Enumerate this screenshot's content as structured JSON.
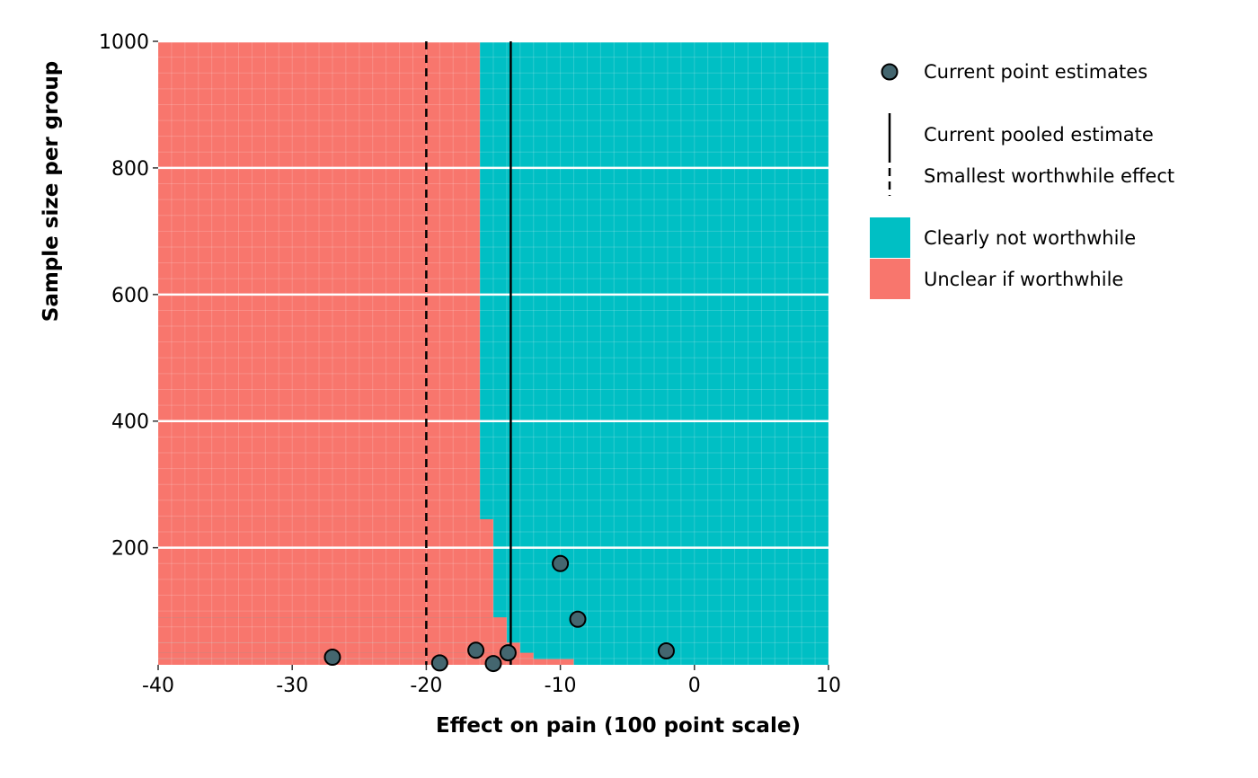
{
  "colors": {
    "clearly_not_worthwhile": "#00BFC4",
    "unclear_if_worthwhile": "#F8766D",
    "point_fill": "#44666f",
    "point_stroke": "#000000",
    "gridline": "#ffffff",
    "line": "#000000"
  },
  "chart_data": {
    "type": "heatmap",
    "xlabel": "Effect on pain (100 point scale)",
    "ylabel": "Sample size per group",
    "xlim": [
      -40,
      10
    ],
    "ylim": [
      15,
      1000
    ],
    "x_ticks": [
      -40,
      -30,
      -20,
      -10,
      0,
      10
    ],
    "x_tick_labels": [
      "-40",
      "-30",
      "-20",
      "-10",
      "0",
      "10"
    ],
    "y_ticks": [
      200,
      400,
      600,
      800,
      1000
    ],
    "y_tick_labels": [
      "200",
      "400",
      "600",
      "800",
      "1000"
    ],
    "grid": true,
    "legend_position": "right",
    "regions": {
      "description_order": [
        "Clearly not worthwhile",
        "Unclear if worthwhile"
      ],
      "boundary": [
        {
          "n_min": 15,
          "n_max": 24,
          "effect": -9
        },
        {
          "n_min": 24,
          "n_max": 34,
          "effect": -12
        },
        {
          "n_min": 34,
          "n_max": 50,
          "effect": -13
        },
        {
          "n_min": 50,
          "n_max": 90,
          "effect": -14
        },
        {
          "n_min": 90,
          "n_max": 245,
          "effect": -15
        },
        {
          "n_min": 245,
          "n_max": 1000,
          "effect": -16
        }
      ]
    },
    "pooled_estimate": -13.7,
    "smallest_worthwhile_effect": -20,
    "points": [
      {
        "x": -27,
        "y": 27
      },
      {
        "x": -19,
        "y": 18
      },
      {
        "x": -16.3,
        "y": 38
      },
      {
        "x": -15,
        "y": 17
      },
      {
        "x": -13.9,
        "y": 34
      },
      {
        "x": -10,
        "y": 175
      },
      {
        "x": -8.7,
        "y": 87
      },
      {
        "x": -2.1,
        "y": 37
      }
    ],
    "legend": {
      "points": "Current point estimates",
      "pooled": "Current pooled estimate",
      "swe": "Smallest worthwhile effect",
      "clearly_not": "Clearly not worthwhile",
      "unclear": "Unclear if worthwhile"
    }
  }
}
